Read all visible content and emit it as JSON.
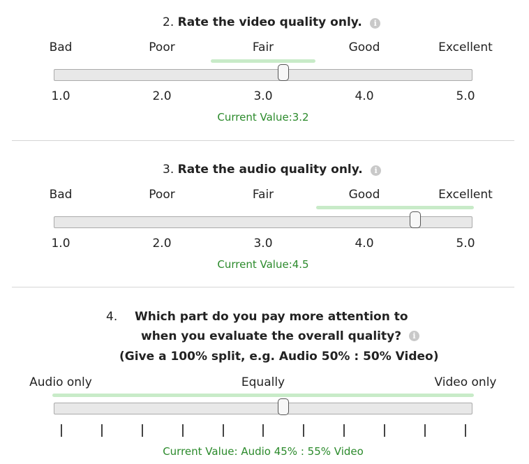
{
  "q2": {
    "number": "2.",
    "title": "Rate the video quality only.",
    "labels": [
      "Bad",
      "Poor",
      "Fair",
      "Good",
      "Excellent"
    ],
    "ticks": [
      "1.0",
      "2.0",
      "3.0",
      "4.0",
      "5.0"
    ],
    "current_label": "Current Value:",
    "current_value": "3.2",
    "value": 3.2,
    "min": 1,
    "max": 5
  },
  "q3": {
    "number": "3.",
    "title": "Rate the audio quality only.",
    "labels": [
      "Bad",
      "Poor",
      "Fair",
      "Good",
      "Excellent"
    ],
    "ticks": [
      "1.0",
      "2.0",
      "3.0",
      "4.0",
      "5.0"
    ],
    "current_label": "Current Value:",
    "current_value": "4.5",
    "value": 4.5,
    "min": 1,
    "max": 5
  },
  "q4": {
    "number": "4.",
    "title_line1": "Which part do you pay more attention to",
    "title_line2": "when you evaluate the overall quality?",
    "title_line3": "(Give a 100% split, e.g. Audio 50% : 50% Video)",
    "labels": [
      "Audio only",
      "Equally",
      "Video only"
    ],
    "current_text": "Current Value: Audio 45% : 55% Video",
    "audio_percent": 45,
    "video_percent": 55
  },
  "colors": {
    "highlight": "#c8ebc8",
    "current_value_text": "#2b8a2b"
  },
  "icons": {
    "info": "info-icon"
  }
}
